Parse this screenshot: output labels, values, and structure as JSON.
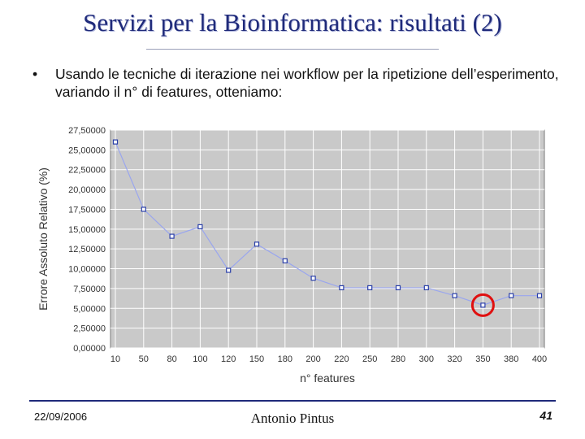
{
  "slide": {
    "title": "Servizi per la Bioinformatica: risultati (2)",
    "bullet_marker": "•",
    "bullet_text": "Usando le tecniche di iterazione nei workflow per la ripetizione dell’esperimento, variando il n° di features, otteniamo:"
  },
  "footer": {
    "date": "22/09/2006",
    "author": "Antonio Pintus",
    "page": "41"
  },
  "chart_data": {
    "type": "line",
    "title": "",
    "xlabel": "n° features",
    "ylabel": "Errore Assoluto Relativo (%)",
    "categories": [
      "10",
      "50",
      "80",
      "100",
      "120",
      "150",
      "180",
      "200",
      "220",
      "250",
      "280",
      "300",
      "320",
      "350",
      "380",
      "400"
    ],
    "values": [
      26.0,
      17.5,
      14.1,
      15.3,
      9.8,
      13.1,
      11.0,
      8.8,
      7.6,
      7.6,
      7.6,
      7.6,
      6.6,
      5.4,
      6.6,
      6.6
    ],
    "ylim": [
      0,
      27.5
    ],
    "yticks": [
      "0,00000",
      "2,50000",
      "5,00000",
      "7,50000",
      "10,00000",
      "12,50000",
      "15,00000",
      "17,50000",
      "20,00000",
      "22,50000",
      "25,00000",
      "27,50000"
    ],
    "grid": true,
    "highlight_category": "350",
    "colors": {
      "plot_bg": "#c9c9c9",
      "line": "#9aa6ee",
      "marker": "#2a3fa8",
      "highlight": "#e01010",
      "grid": "#ffffff"
    }
  }
}
